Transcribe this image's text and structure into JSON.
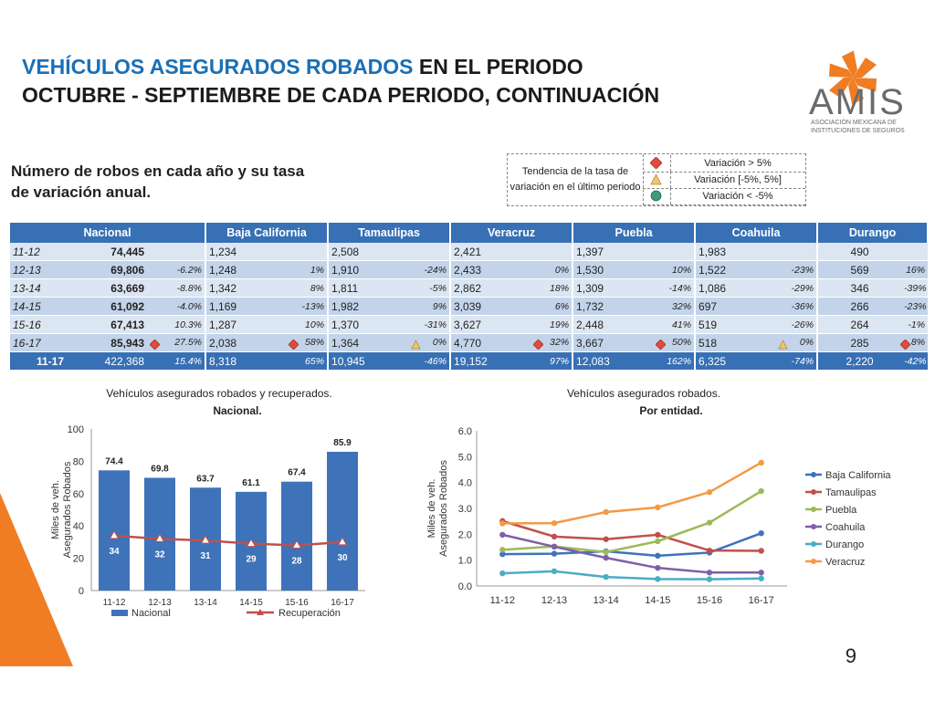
{
  "title": {
    "line1_blue": "VEHÍCULOS ASEGURADOS ROBADOS",
    "line1_rest": " EN EL PERIODO",
    "line2": "OCTUBRE - SEPTIEMBRE DE CADA PERIODO, CONTINUACIÓN"
  },
  "logo": {
    "word": "AMIS",
    "sub": "ASOCIACIÓN MEXICANA DE INSTITUCIONES DE SEGUROS",
    "color": "#f07d24"
  },
  "subtitle": "Número de robos en cada año y su tasa de variación anual.",
  "legend": {
    "label": "Tendencia de la tasa de variación en el último periodo",
    "items": [
      {
        "text": "Variación > 5%",
        "shape": "diamond",
        "color": "#e04b3a"
      },
      {
        "text": "Variación [-5%, 5%]",
        "shape": "triangle",
        "color": "#f2c46b"
      },
      {
        "text": "Variación < -5%",
        "shape": "circle",
        "color": "#3a9a7a"
      }
    ]
  },
  "table": {
    "headers": [
      "Nacional",
      "Baja California",
      "Tamaulipas",
      "Veracruz",
      "Puebla",
      "Coahuila",
      "Durango"
    ],
    "rows": [
      {
        "period": "11-12",
        "nac": "74,445",
        "nac_pct": "",
        "nac_mk": "",
        "cells": [
          [
            "1,234",
            "",
            ""
          ],
          [
            "2,508",
            "",
            ""
          ],
          [
            "2,421",
            "",
            ""
          ],
          [
            "1,397",
            "",
            ""
          ],
          [
            "1,983",
            "",
            ""
          ],
          [
            "490",
            "",
            ""
          ]
        ]
      },
      {
        "period": "12-13",
        "nac": "69,806",
        "nac_pct": "-6.2%",
        "nac_mk": "",
        "cells": [
          [
            "1,248",
            "1%",
            ""
          ],
          [
            "1,910",
            "-24%",
            ""
          ],
          [
            "2,433",
            "0%",
            ""
          ],
          [
            "1,530",
            "10%",
            ""
          ],
          [
            "1,522",
            "-23%",
            ""
          ],
          [
            "569",
            "16%",
            ""
          ]
        ]
      },
      {
        "period": "13-14",
        "nac": "63,669",
        "nac_pct": "-8.8%",
        "nac_mk": "",
        "cells": [
          [
            "1,342",
            "8%",
            ""
          ],
          [
            "1,811",
            "-5%",
            ""
          ],
          [
            "2,862",
            "18%",
            ""
          ],
          [
            "1,309",
            "-14%",
            ""
          ],
          [
            "1,086",
            "-29%",
            ""
          ],
          [
            "346",
            "-39%",
            ""
          ]
        ]
      },
      {
        "period": "14-15",
        "nac": "61,092",
        "nac_pct": "-4.0%",
        "nac_mk": "",
        "cells": [
          [
            "1,169",
            "-13%",
            ""
          ],
          [
            "1,982",
            "9%",
            ""
          ],
          [
            "3,039",
            "6%",
            ""
          ],
          [
            "1,732",
            "32%",
            ""
          ],
          [
            "697",
            "-36%",
            ""
          ],
          [
            "266",
            "-23%",
            ""
          ]
        ]
      },
      {
        "period": "15-16",
        "nac": "67,413",
        "nac_pct": "10.3%",
        "nac_mk": "",
        "cells": [
          [
            "1,287",
            "10%",
            ""
          ],
          [
            "1,370",
            "-31%",
            ""
          ],
          [
            "3,627",
            "19%",
            ""
          ],
          [
            "2,448",
            "41%",
            ""
          ],
          [
            "519",
            "-26%",
            ""
          ],
          [
            "264",
            "-1%",
            ""
          ]
        ]
      },
      {
        "period": "16-17",
        "nac": "85,943",
        "nac_pct": "27.5%",
        "nac_mk": "diamond",
        "cells": [
          [
            "2,038",
            "58%",
            "diamond"
          ],
          [
            "1,364",
            "0%",
            "triangle"
          ],
          [
            "4,770",
            "32%",
            "diamond"
          ],
          [
            "3,667",
            "50%",
            "diamond"
          ],
          [
            "518",
            "0%",
            "triangle"
          ],
          [
            "285",
            "8%",
            "diamond"
          ]
        ]
      }
    ],
    "total": {
      "period": "11-17",
      "nac": "422,368",
      "nac_pct": "15.4%",
      "cells": [
        [
          "8,318",
          "65%"
        ],
        [
          "10,945",
          "-46%"
        ],
        [
          "19,152",
          "97%"
        ],
        [
          "12,083",
          "162%"
        ],
        [
          "6,325",
          "-74%"
        ],
        [
          "2,220",
          "-42%"
        ]
      ]
    }
  },
  "chart_data": [
    {
      "type": "bar",
      "title": "Vehículos asegurados robados y recuperados.",
      "subtitle": "Nacional.",
      "ylabel": "Miles de veh. Asegurados Robados",
      "categories": [
        "11-12",
        "12-13",
        "13-14",
        "14-15",
        "15-16",
        "16-17"
      ],
      "ylim": [
        0,
        100
      ],
      "yticks": [
        0,
        20,
        40,
        60,
        80,
        100
      ],
      "series": [
        {
          "name": "Nacional",
          "kind": "bar",
          "color": "#3e73b9",
          "values": [
            74.4,
            69.8,
            63.7,
            61.1,
            67.4,
            85.9
          ]
        },
        {
          "name": "Recuperación",
          "kind": "line",
          "color": "#c0504d",
          "values": [
            34,
            32,
            31,
            29,
            28,
            30
          ]
        }
      ]
    },
    {
      "type": "line",
      "title": "Vehículos asegurados robados.",
      "subtitle": "Por entidad.",
      "ylabel": "Miles de veh. Asegurados Robados",
      "categories": [
        "11-12",
        "12-13",
        "13-14",
        "14-15",
        "15-16",
        "16-17"
      ],
      "ylim": [
        0,
        6
      ],
      "yticks": [
        "0.0",
        "1.0",
        "2.0",
        "3.0",
        "4.0",
        "5.0",
        "6.0"
      ],
      "series": [
        {
          "name": "Baja California",
          "color": "#3e73b9",
          "values": [
            1.23,
            1.25,
            1.34,
            1.17,
            1.29,
            2.04
          ]
        },
        {
          "name": "Tamaulipas",
          "color": "#c0504d",
          "values": [
            2.51,
            1.91,
            1.81,
            1.98,
            1.37,
            1.36
          ]
        },
        {
          "name": "Puebla",
          "color": "#9bbb59",
          "values": [
            1.4,
            1.53,
            1.31,
            1.73,
            2.45,
            3.67
          ]
        },
        {
          "name": "Coahuila",
          "color": "#7f5fa8",
          "values": [
            1.98,
            1.52,
            1.09,
            0.7,
            0.52,
            0.52
          ]
        },
        {
          "name": "Durango",
          "color": "#4bacc6",
          "values": [
            0.49,
            0.57,
            0.35,
            0.27,
            0.26,
            0.29
          ]
        },
        {
          "name": "Veracruz",
          "color": "#f39a45",
          "values": [
            2.42,
            2.43,
            2.86,
            3.04,
            3.63,
            4.77
          ]
        }
      ]
    }
  ],
  "page_number": "9"
}
